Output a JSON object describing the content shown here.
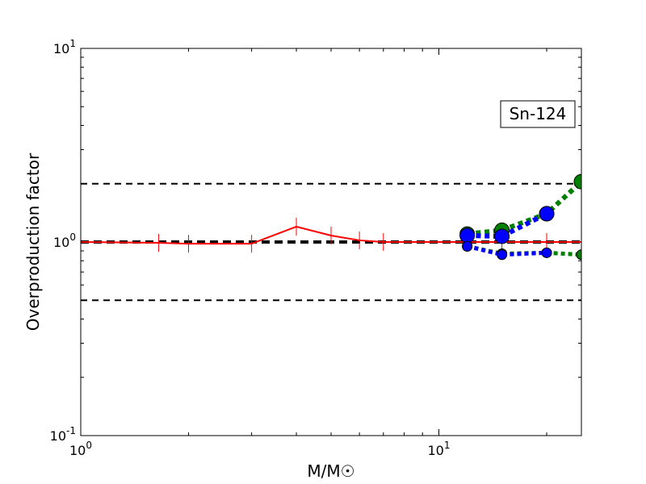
{
  "chart_data": {
    "type": "line",
    "xscale": "log",
    "yscale": "log",
    "xlim": [
      1,
      25
    ],
    "ylim": [
      0.1,
      10
    ],
    "xlabel": "M/M☉",
    "ylabel": "Overproduction factor",
    "x_ticks": [
      {
        "value": 1,
        "base": "10",
        "exp": "0"
      },
      {
        "value": 10,
        "base": "10",
        "exp": "1"
      }
    ],
    "y_ticks": [
      {
        "value": 0.1,
        "base": "10",
        "exp": "-1"
      },
      {
        "value": 1,
        "base": "10",
        "exp": "0"
      },
      {
        "value": 10,
        "base": "10",
        "exp": "1"
      }
    ],
    "annotation": "Sn-124",
    "reference_lines": [
      {
        "y": 2.0,
        "style": "dashed",
        "color": "#000000",
        "width": 2
      },
      {
        "y": 1.0,
        "style": "dashed",
        "color": "#000000",
        "width": 4
      },
      {
        "y": 0.5,
        "style": "dashed",
        "color": "#000000",
        "width": 2
      }
    ],
    "series": [
      {
        "color": "#ff0000",
        "line": "solid",
        "width": 2,
        "marker": "vtick",
        "x": [
          1.0,
          1.65,
          2.0,
          3.0,
          4.0,
          5.0,
          6.0,
          7.0,
          12.0,
          15.0,
          20.0,
          25.0
        ],
        "y": [
          1.0,
          0.99,
          0.98,
          0.98,
          1.2,
          1.08,
          1.02,
          1.0,
          1.0,
          1.0,
          1.0,
          1.0
        ]
      },
      {
        "color": "#008000",
        "line": "dotted",
        "width": 6,
        "marker": "circle",
        "marker_r": 9,
        "x": [
          12.0,
          15.0,
          20.0,
          25.0
        ],
        "y": [
          1.1,
          1.15,
          1.4,
          2.05
        ]
      },
      {
        "color": "#008000",
        "line": "dotted",
        "width": 5,
        "marker": "circle",
        "marker_r": 6,
        "x": [
          12.0,
          15.0,
          20.0,
          25.0
        ],
        "y": [
          0.95,
          0.87,
          0.88,
          0.86
        ]
      },
      {
        "color": "#0000ff",
        "line": "dotted",
        "width": 6,
        "marker": "circle",
        "marker_r": 9,
        "x": [
          12.0,
          15.0,
          20.0
        ],
        "y": [
          1.08,
          1.07,
          1.4
        ]
      },
      {
        "color": "#0000ff",
        "line": "dotted",
        "width": 5,
        "marker": "circle",
        "marker_r": 6,
        "x": [
          12.0,
          15.0,
          20.0
        ],
        "y": [
          0.95,
          0.86,
          0.88
        ]
      }
    ]
  }
}
